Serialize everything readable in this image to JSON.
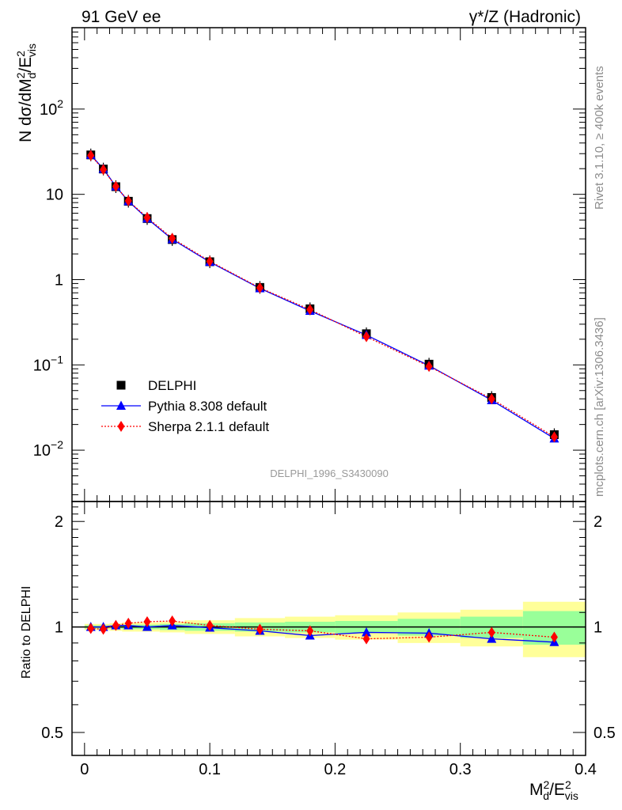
{
  "header": {
    "left": "91 GeV ee",
    "right": "γ*/Z (Hadronic)"
  },
  "side_labels": {
    "rivet": "Rivet 3.1.10, ≥ 400k events",
    "mcplots": "mcplots.cern.ch [arXiv:1306.3436]"
  },
  "watermark": "DELPHI_1996_S3430090",
  "colors": {
    "data": "#000000",
    "pythia": "#0000ff",
    "sherpa": "#ff0000",
    "band_inner": "#99ff99",
    "band_outer": "#ffff99",
    "watermark": "#999999"
  },
  "chart_data": {
    "type": "line",
    "title": "91 GeV ee",
    "xlabel": "M_d^2/E_vis^2",
    "x_range": [
      -0.01,
      0.4
    ],
    "x_ticks": [
      "0",
      "0.1",
      "0.2",
      "0.3",
      "0.4"
    ],
    "x": [
      0.005,
      0.015,
      0.025,
      0.035,
      0.05,
      0.07,
      0.1,
      0.14,
      0.18,
      0.225,
      0.275,
      0.325,
      0.375
    ],
    "main": {
      "ylabel": "N dσ/dM_d^2/E_vis^2",
      "yscale": "log",
      "ylim": [
        0.0025,
        900
      ],
      "y_tick_labels": [
        {
          "value": 0.01,
          "base": "10",
          "exp": "−2"
        },
        {
          "value": 0.1,
          "base": "10",
          "exp": "−1"
        },
        {
          "value": 1,
          "base": "1",
          "exp": ""
        },
        {
          "value": 10,
          "base": "10",
          "exp": ""
        },
        {
          "value": 100,
          "base": "10",
          "exp": "2"
        }
      ],
      "series": [
        {
          "name": "DELPHI",
          "values": [
            29.0,
            19.8,
            12.3,
            8.3,
            5.2,
            2.95,
            1.62,
            0.81,
            0.455,
            0.232,
            0.102,
            0.0415,
            0.0152
          ]
        },
        {
          "name": "Pythia 8.308 default",
          "values": [
            29.0,
            19.9,
            12.4,
            8.3,
            5.2,
            2.97,
            1.61,
            0.79,
            0.43,
            0.224,
            0.098,
            0.0385,
            0.0137
          ]
        },
        {
          "name": "Sherpa 2.1.1 default",
          "values": [
            28.6,
            19.5,
            12.4,
            8.4,
            5.35,
            3.05,
            1.64,
            0.8,
            0.445,
            0.214,
            0.096,
            0.04,
            0.0143
          ]
        }
      ]
    },
    "ratio": {
      "ylabel": "Ratio to DELPHI",
      "ylim": [
        0.43,
        2.28
      ],
      "y_ticks": [
        "0.5",
        "1",
        "2"
      ],
      "bins": [
        0,
        0.01,
        0.02,
        0.03,
        0.04,
        0.06,
        0.08,
        0.12,
        0.16,
        0.2,
        0.25,
        0.3,
        0.35,
        0.4
      ],
      "band_inner": [
        0.01,
        0.01,
        0.01,
        0.015,
        0.015,
        0.02,
        0.025,
        0.03,
        0.035,
        0.04,
        0.055,
        0.07,
        0.11
      ],
      "band_outer": [
        0.02,
        0.02,
        0.025,
        0.03,
        0.03,
        0.035,
        0.045,
        0.06,
        0.07,
        0.08,
        0.1,
        0.12,
        0.18
      ],
      "series": [
        {
          "name": "Pythia 8.308 default",
          "values": [
            1.0,
            1.0,
            1.01,
            1.01,
            1.0,
            1.01,
            0.995,
            0.975,
            0.945,
            0.965,
            0.96,
            0.925,
            0.905
          ]
        },
        {
          "name": "Sherpa 2.1.1 default",
          "values": [
            0.99,
            0.985,
            1.01,
            1.025,
            1.035,
            1.04,
            1.01,
            0.985,
            0.975,
            0.925,
            0.935,
            0.965,
            0.935
          ]
        }
      ]
    },
    "legend": {
      "position": "middle-left",
      "entries": [
        {
          "label": "DELPHI",
          "marker": "square"
        },
        {
          "label": "Pythia 8.308 default",
          "marker": "triangle"
        },
        {
          "label": "Sherpa 2.1.1 default",
          "marker": "diamond"
        }
      ]
    }
  }
}
